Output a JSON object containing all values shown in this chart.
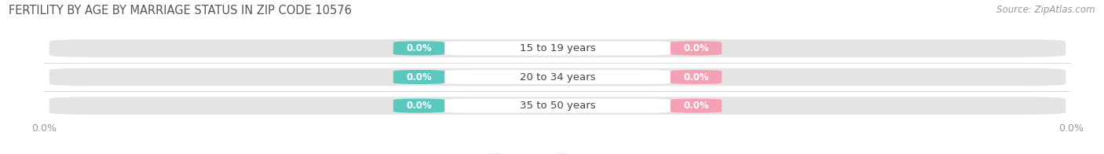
{
  "title": "FERTILITY BY AGE BY MARRIAGE STATUS IN ZIP CODE 10576",
  "source": "Source: ZipAtlas.com",
  "categories": [
    "15 to 19 years",
    "20 to 34 years",
    "35 to 50 years"
  ],
  "married_values": [
    0.0,
    0.0,
    0.0
  ],
  "unmarried_values": [
    0.0,
    0.0,
    0.0
  ],
  "married_color": "#5bc8c0",
  "unmarried_color": "#f4a0b5",
  "bar_bg_color": "#e4e4e4",
  "xlim": [
    -1.0,
    1.0
  ],
  "title_fontsize": 10.5,
  "source_fontsize": 8.5,
  "value_fontsize": 8.5,
  "category_fontsize": 9.5,
  "legend_fontsize": 9.5,
  "bg_color": "#ffffff",
  "axis_label_color": "#999999",
  "title_color": "#555555",
  "source_color": "#999999",
  "category_color": "#444444",
  "legend_label_color": "#555555"
}
